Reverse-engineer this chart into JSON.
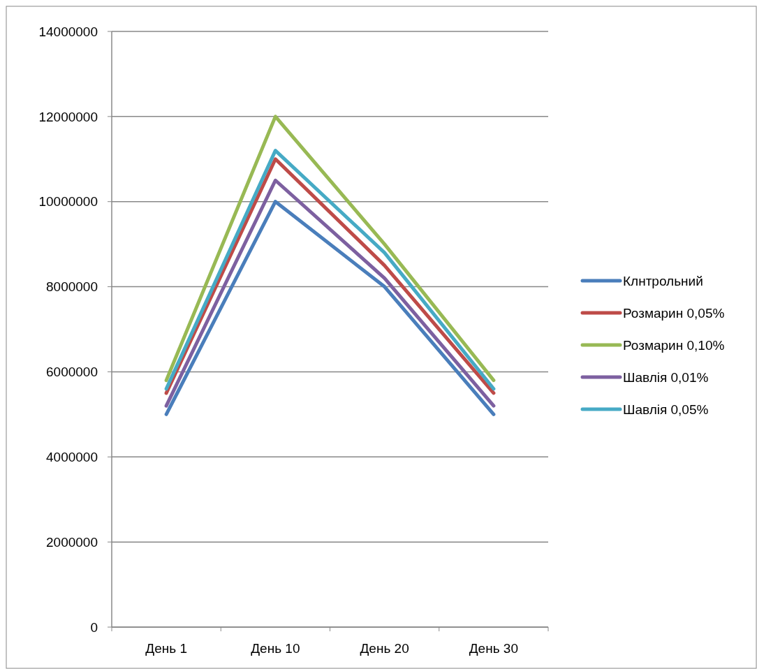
{
  "chart_data": {
    "type": "line",
    "categories": [
      "День 1",
      "День 10",
      "День 20",
      "День 30"
    ],
    "series": [
      {
        "name": "Клнтрольний",
        "color": "#4a7ebb",
        "values": [
          5000000,
          10000000,
          8000000,
          5000000
        ]
      },
      {
        "name": "Розмарин 0,05%",
        "color": "#be4b48",
        "values": [
          5500000,
          11000000,
          8500000,
          5500000
        ]
      },
      {
        "name": "Розмарин 0,10%",
        "color": "#98b954",
        "values": [
          5800000,
          12000000,
          9000000,
          5800000
        ]
      },
      {
        "name": "Шавлія 0,01%",
        "color": "#7d60a0",
        "values": [
          5200000,
          10500000,
          8200000,
          5200000
        ]
      },
      {
        "name": "Шавлія 0,05%",
        "color": "#46aac5",
        "values": [
          5600000,
          11200000,
          8800000,
          5600000
        ]
      }
    ],
    "ylim": [
      0,
      14000000
    ],
    "yticks": [
      0,
      2000000,
      4000000,
      6000000,
      8000000,
      10000000,
      12000000,
      14000000
    ],
    "grid": "y",
    "legend": "right",
    "marker": "none",
    "line_style": "solid"
  }
}
